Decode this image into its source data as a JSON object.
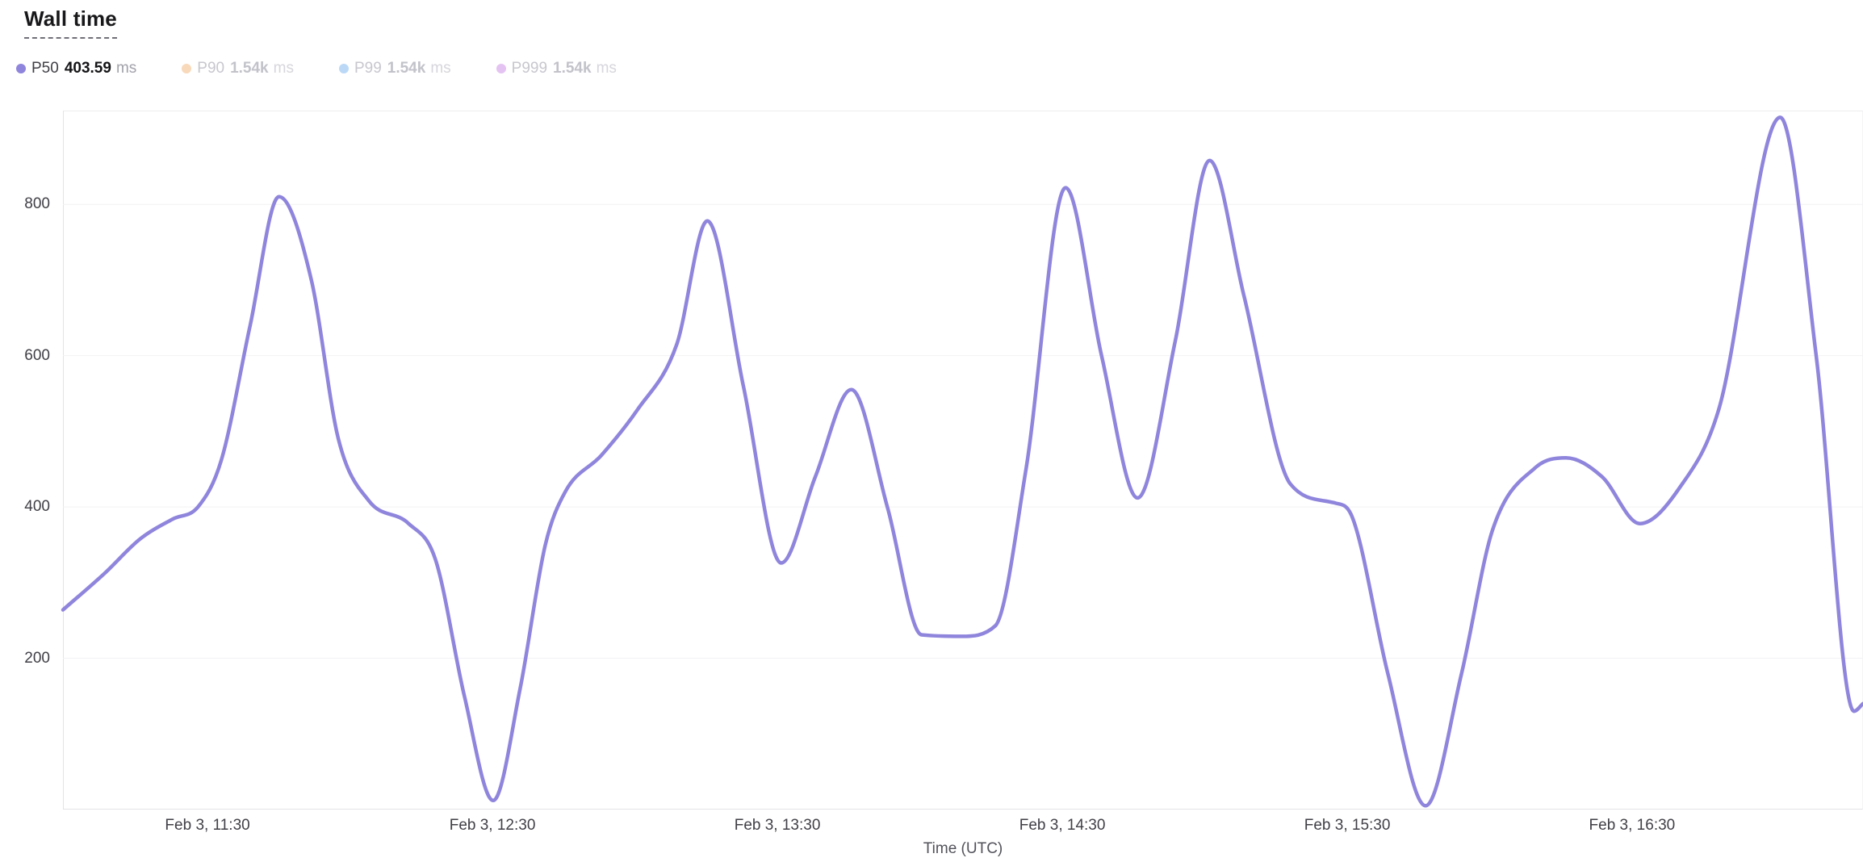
{
  "title": "Wall time",
  "legend": {
    "items": [
      {
        "name": "P50",
        "value": "403.59",
        "unit": "ms",
        "color": "#8F85DC",
        "active": true
      },
      {
        "name": "P90",
        "value": "1.54k",
        "unit": "ms",
        "color": "#F8D9BA",
        "active": false
      },
      {
        "name": "P99",
        "value": "1.54k",
        "unit": "ms",
        "color": "#BBD9F6",
        "active": false
      },
      {
        "name": "P999",
        "value": "1.54k",
        "unit": "ms",
        "color": "#E4C3F2",
        "active": false
      }
    ]
  },
  "chart_data": {
    "type": "line",
    "title": "Wall time",
    "xlabel": "Time (UTC)",
    "ylabel": "",
    "unit": "ms",
    "ylim": [
      0,
      924
    ],
    "yticks": [
      200,
      400,
      600,
      800
    ],
    "grid": "horizontal",
    "legend_position": "top",
    "xticks": [
      {
        "pos": 0.0803,
        "label": "Feb 3, 11:30"
      },
      {
        "pos": 0.2386,
        "label": "Feb 3, 12:30"
      },
      {
        "pos": 0.3969,
        "label": "Feb 3, 13:30"
      },
      {
        "pos": 0.5552,
        "label": "Feb 3, 14:30"
      },
      {
        "pos": 0.7135,
        "label": "Feb 3, 15:30"
      },
      {
        "pos": 0.8717,
        "label": "Feb 3, 16:30"
      }
    ],
    "series": [
      {
        "name": "P50",
        "current_value": "403.59 ms",
        "color": "#8F85DC",
        "points": [
          [
            0.0,
            264
          ],
          [
            0.023,
            312
          ],
          [
            0.043,
            358
          ],
          [
            0.061,
            384
          ],
          [
            0.075,
            400
          ],
          [
            0.088,
            462
          ],
          [
            0.104,
            640
          ],
          [
            0.12,
            810
          ],
          [
            0.138,
            700
          ],
          [
            0.153,
            490
          ],
          [
            0.17,
            408
          ],
          [
            0.192,
            378
          ],
          [
            0.207,
            330
          ],
          [
            0.223,
            150
          ],
          [
            0.239,
            12
          ],
          [
            0.254,
            160
          ],
          [
            0.268,
            350
          ],
          [
            0.279,
            420
          ],
          [
            0.299,
            468
          ],
          [
            0.319,
            528
          ],
          [
            0.341,
            615
          ],
          [
            0.358,
            778
          ],
          [
            0.378,
            560
          ],
          [
            0.399,
            326
          ],
          [
            0.418,
            440
          ],
          [
            0.438,
            555
          ],
          [
            0.458,
            400
          ],
          [
            0.477,
            231
          ],
          [
            0.499,
            229
          ],
          [
            0.518,
            243
          ],
          [
            0.535,
            450
          ],
          [
            0.557,
            822
          ],
          [
            0.577,
            600
          ],
          [
            0.597,
            412
          ],
          [
            0.618,
            620
          ],
          [
            0.637,
            858
          ],
          [
            0.656,
            680
          ],
          [
            0.682,
            430
          ],
          [
            0.707,
            405
          ],
          [
            0.716,
            388
          ],
          [
            0.736,
            180
          ],
          [
            0.757,
            5
          ],
          [
            0.777,
            180
          ],
          [
            0.794,
            368
          ],
          [
            0.818,
            452
          ],
          [
            0.835,
            465
          ],
          [
            0.855,
            440
          ],
          [
            0.876,
            378
          ],
          [
            0.898,
            425
          ],
          [
            0.92,
            530
          ],
          [
            0.954,
            915
          ],
          [
            0.974,
            600
          ],
          [
            0.995,
            130
          ],
          [
            1.0,
            140
          ]
        ]
      }
    ]
  }
}
